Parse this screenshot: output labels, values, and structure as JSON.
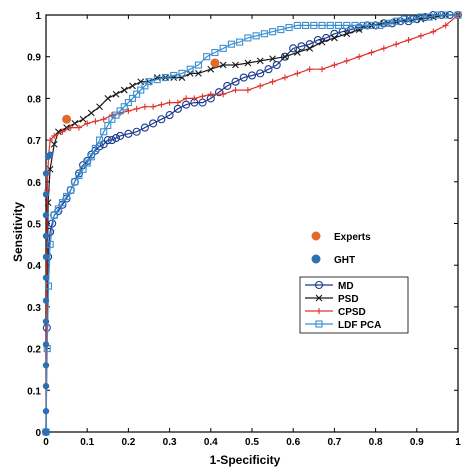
{
  "chart_data": {
    "type": "line",
    "title": "",
    "xlabel": "1-Specificity",
    "ylabel": "Sensitivity",
    "xlim": [
      0,
      1
    ],
    "ylim": [
      0,
      1
    ],
    "grid": false,
    "xticks": [
      "0",
      "0.1",
      "0.2",
      "0.3",
      "0.4",
      "0.5",
      "0.6",
      "0.7",
      "0.8",
      "0.9",
      "1"
    ],
    "yticks": [
      "0",
      "0.1",
      "0.2",
      "0.3",
      "0.4",
      "0.5",
      "0.6",
      "0.7",
      "0.8",
      "0.9",
      "1"
    ],
    "legend_placement": "lower-right",
    "points": [
      {
        "name": "Experts",
        "color": "#e0692d",
        "marker": "filled-circle",
        "x": [
          0.05,
          0.41
        ],
        "y": [
          0.75,
          0.885
        ]
      },
      {
        "name": "GHT",
        "color": "#2d6fb0",
        "marker": "filled-circle",
        "x": [
          0,
          0,
          0,
          0,
          0,
          0,
          0,
          0,
          0,
          0,
          0,
          0,
          0,
          0.005,
          0.01
        ],
        "y": [
          0.0,
          0.05,
          0.11,
          0.16,
          0.21,
          0.265,
          0.315,
          0.37,
          0.42,
          0.47,
          0.52,
          0.57,
          0.62,
          0.66,
          0.665
        ]
      }
    ],
    "series": [
      {
        "name": "MD",
        "color": "#1a3a8c",
        "marker": "circle-open",
        "x": [
          0,
          0.002,
          0.005,
          0.01,
          0.015,
          0.02,
          0.03,
          0.04,
          0.05,
          0.06,
          0.07,
          0.08,
          0.09,
          0.1,
          0.11,
          0.12,
          0.13,
          0.14,
          0.15,
          0.16,
          0.17,
          0.18,
          0.2,
          0.22,
          0.24,
          0.26,
          0.28,
          0.3,
          0.32,
          0.34,
          0.36,
          0.38,
          0.4,
          0.42,
          0.44,
          0.46,
          0.48,
          0.5,
          0.52,
          0.54,
          0.56,
          0.58,
          0.6,
          0.62,
          0.64,
          0.66,
          0.68,
          0.7,
          0.72,
          0.74,
          0.76,
          0.78,
          0.8,
          0.82,
          0.84,
          0.86,
          0.88,
          0.9,
          0.92,
          0.94,
          0.96,
          0.98,
          1.0
        ],
        "y": [
          0.0,
          0.25,
          0.42,
          0.48,
          0.5,
          0.52,
          0.53,
          0.545,
          0.56,
          0.58,
          0.6,
          0.62,
          0.64,
          0.65,
          0.665,
          0.675,
          0.685,
          0.69,
          0.7,
          0.7,
          0.705,
          0.71,
          0.715,
          0.72,
          0.73,
          0.74,
          0.75,
          0.76,
          0.775,
          0.785,
          0.79,
          0.79,
          0.8,
          0.815,
          0.83,
          0.84,
          0.85,
          0.855,
          0.86,
          0.87,
          0.88,
          0.9,
          0.92,
          0.925,
          0.93,
          0.94,
          0.945,
          0.955,
          0.96,
          0.965,
          0.97,
          0.975,
          0.975,
          0.98,
          0.98,
          0.985,
          0.985,
          0.99,
          0.995,
          1.0,
          1.0,
          1.0,
          1.0
        ]
      },
      {
        "name": "PSD",
        "color": "#1a1a1a",
        "marker": "x",
        "x": [
          0,
          0.005,
          0.01,
          0.02,
          0.03,
          0.05,
          0.07,
          0.09,
          0.11,
          0.13,
          0.15,
          0.17,
          0.19,
          0.21,
          0.23,
          0.25,
          0.27,
          0.29,
          0.31,
          0.33,
          0.35,
          0.37,
          0.4,
          0.43,
          0.46,
          0.49,
          0.52,
          0.55,
          0.58,
          0.61,
          0.64,
          0.67,
          0.7,
          0.73,
          0.76,
          0.79,
          0.82,
          0.85,
          0.88,
          0.91,
          0.94,
          0.97,
          1.0
        ],
        "y": [
          0.0,
          0.55,
          0.63,
          0.69,
          0.72,
          0.73,
          0.74,
          0.75,
          0.765,
          0.78,
          0.8,
          0.81,
          0.82,
          0.83,
          0.84,
          0.84,
          0.85,
          0.85,
          0.85,
          0.85,
          0.86,
          0.86,
          0.87,
          0.88,
          0.88,
          0.885,
          0.89,
          0.895,
          0.9,
          0.91,
          0.92,
          0.935,
          0.945,
          0.955,
          0.965,
          0.975,
          0.98,
          0.985,
          0.99,
          0.99,
          0.995,
          1.0,
          1.0
        ]
      },
      {
        "name": "CPSD",
        "color": "#e0332c",
        "marker": "plus",
        "x": [
          0,
          0.003,
          0.006,
          0.01,
          0.02,
          0.04,
          0.06,
          0.08,
          0.1,
          0.12,
          0.14,
          0.16,
          0.18,
          0.2,
          0.22,
          0.24,
          0.26,
          0.28,
          0.3,
          0.32,
          0.34,
          0.36,
          0.38,
          0.4,
          0.43,
          0.46,
          0.49,
          0.52,
          0.55,
          0.58,
          0.61,
          0.64,
          0.67,
          0.7,
          0.73,
          0.76,
          0.79,
          0.82,
          0.85,
          0.88,
          0.91,
          0.94,
          0.97,
          1.0
        ],
        "y": [
          0.0,
          0.58,
          0.66,
          0.7,
          0.71,
          0.72,
          0.73,
          0.73,
          0.74,
          0.745,
          0.75,
          0.76,
          0.765,
          0.77,
          0.775,
          0.78,
          0.78,
          0.785,
          0.79,
          0.79,
          0.8,
          0.8,
          0.805,
          0.81,
          0.81,
          0.82,
          0.82,
          0.83,
          0.84,
          0.85,
          0.86,
          0.87,
          0.87,
          0.88,
          0.89,
          0.9,
          0.91,
          0.92,
          0.93,
          0.94,
          0.95,
          0.96,
          0.975,
          1.0
        ]
      },
      {
        "name": "LDF PCA",
        "color": "#3d8fd0",
        "marker": "square-open",
        "x": [
          0,
          0.003,
          0.006,
          0.01,
          0.02,
          0.03,
          0.04,
          0.05,
          0.06,
          0.07,
          0.08,
          0.09,
          0.1,
          0.11,
          0.12,
          0.13,
          0.14,
          0.15,
          0.16,
          0.17,
          0.18,
          0.19,
          0.2,
          0.21,
          0.22,
          0.23,
          0.24,
          0.25,
          0.27,
          0.29,
          0.31,
          0.33,
          0.35,
          0.37,
          0.39,
          0.41,
          0.43,
          0.45,
          0.47,
          0.49,
          0.51,
          0.53,
          0.55,
          0.57,
          0.59,
          0.61,
          0.63,
          0.65,
          0.67,
          0.69,
          0.71,
          0.73,
          0.75,
          0.77,
          0.79,
          0.81,
          0.83,
          0.85,
          0.87,
          0.89,
          0.91,
          0.93,
          0.95,
          0.97,
          1.0
        ],
        "y": [
          0.0,
          0.2,
          0.35,
          0.45,
          0.52,
          0.535,
          0.55,
          0.565,
          0.58,
          0.6,
          0.615,
          0.63,
          0.645,
          0.66,
          0.68,
          0.7,
          0.72,
          0.735,
          0.75,
          0.76,
          0.77,
          0.78,
          0.79,
          0.8,
          0.81,
          0.82,
          0.83,
          0.84,
          0.845,
          0.85,
          0.855,
          0.86,
          0.87,
          0.88,
          0.9,
          0.91,
          0.92,
          0.93,
          0.935,
          0.945,
          0.95,
          0.955,
          0.96,
          0.965,
          0.97,
          0.975,
          0.975,
          0.975,
          0.975,
          0.975,
          0.975,
          0.975,
          0.975,
          0.975,
          0.975,
          0.975,
          0.98,
          0.985,
          0.99,
          0.99,
          0.995,
          0.995,
          1.0,
          1.0,
          1.0
        ]
      }
    ]
  }
}
